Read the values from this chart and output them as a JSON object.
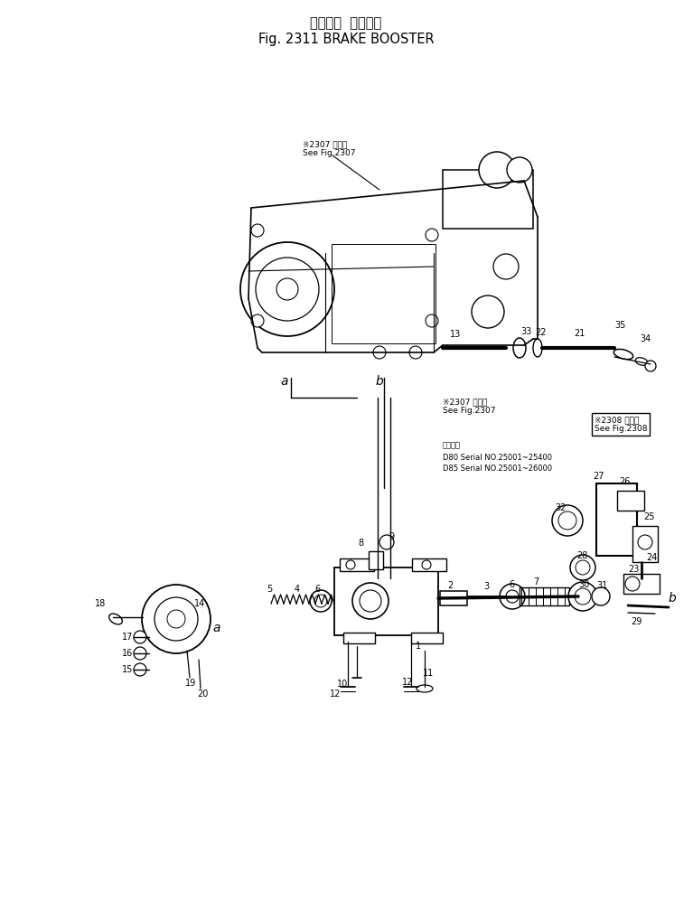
{
  "title_jp": "ブレーキ  ブースタ",
  "title_en": "Fig. 2311 BRAKE BOOSTER",
  "bg_color": "#ffffff",
  "fig_width": 7.67,
  "fig_height": 10.07,
  "dpi": 100,
  "annotation_top": "※2307 図参照\nSee Fig.2307",
  "annotation_mid": "※2307 図参照\nSee Fig.2307",
  "annotation_right": "※2308 図参照\nSee Fig.2308",
  "annotation_usage": "適用年式\nD80 Serial NO.25001~25400\nD85 Serial NO.25001~26000"
}
